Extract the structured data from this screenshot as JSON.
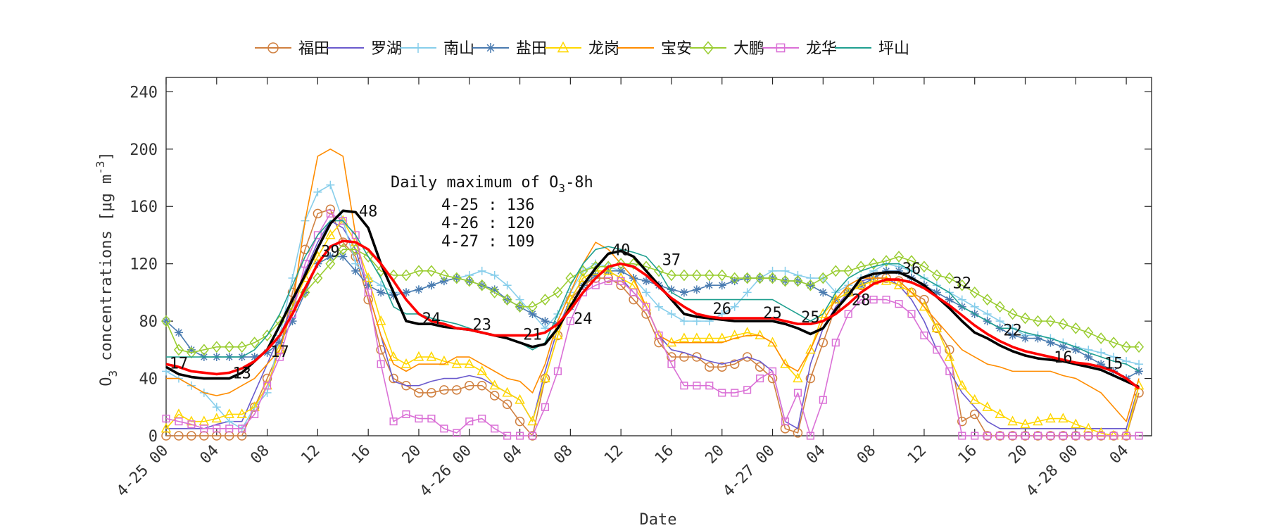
{
  "chart_data": {
    "type": "line",
    "xlabel": "Date",
    "ylabel": "O3 concentrations [μg m-3]",
    "ylim": [
      0,
      250
    ],
    "y_ticks": [
      0,
      40,
      80,
      120,
      160,
      200,
      240
    ],
    "xlim": [
      0,
      78
    ],
    "x_ticks": [
      0,
      4,
      8,
      12,
      16,
      20,
      24,
      28,
      32,
      36,
      40,
      44,
      48,
      52,
      56,
      60,
      64,
      68,
      72,
      76
    ],
    "x_tick_labels": [
      "4-25 00",
      "04",
      "08",
      "12",
      "16",
      "20",
      "4-26 00",
      "04",
      "08",
      "12",
      "16",
      "20",
      "4-27 00",
      "04",
      "08",
      "12",
      "16",
      "20",
      "4-28 00",
      "04"
    ],
    "grid": false,
    "legend": {
      "placement": "top",
      "entries": [
        "福田",
        "罗湖",
        "南山",
        "盐田",
        "龙岗",
        "宝安",
        "大鹏",
        "龙华",
        "坪山"
      ]
    },
    "annotation": {
      "title_main": "Daily maximum of O",
      "title_sub": "3",
      "title_tail": "-8h",
      "lines": [
        "4-25 : 136",
        "4-26 : 120",
        "4-27 : 109"
      ]
    },
    "series_x_step": 1,
    "series": [
      {
        "name": "福田",
        "color": "#D08040",
        "marker": "circle",
        "values": [
          0,
          0,
          0,
          0,
          0,
          0,
          0,
          20,
          40,
          60,
          100,
          130,
          155,
          158,
          135,
          125,
          95,
          60,
          40,
          35,
          30,
          30,
          32,
          32,
          35,
          35,
          28,
          22,
          10,
          0,
          40,
          70,
          95,
          105,
          110,
          110,
          105,
          95,
          85,
          65,
          55,
          55,
          55,
          48,
          48,
          50,
          55,
          48,
          40,
          5,
          2,
          40,
          65,
          90,
          100,
          105,
          110,
          110,
          108,
          100,
          95,
          75,
          60,
          10,
          15,
          0,
          0,
          0,
          0,
          0,
          0,
          0,
          0,
          0,
          0,
          0,
          0,
          30
        ]
      },
      {
        "name": "罗湖",
        "color": "#6A5ACD",
        "marker": "none",
        "values": [
          5,
          5,
          5,
          5,
          8,
          10,
          10,
          30,
          50,
          70,
          90,
          115,
          135,
          150,
          145,
          130,
          100,
          70,
          38,
          35,
          35,
          38,
          40,
          40,
          42,
          40,
          35,
          30,
          25,
          10,
          45,
          75,
          95,
          110,
          115,
          115,
          110,
          100,
          90,
          70,
          60,
          58,
          55,
          52,
          50,
          52,
          55,
          52,
          45,
          10,
          5,
          50,
          75,
          90,
          100,
          108,
          110,
          110,
          105,
          95,
          80,
          60,
          45,
          30,
          20,
          10,
          5,
          5,
          5,
          5,
          5,
          5,
          5,
          5,
          5,
          5,
          5,
          35
        ]
      },
      {
        "name": "南山",
        "color": "#87CEEB",
        "marker": "plus",
        "values": [
          45,
          40,
          35,
          30,
          20,
          10,
          5,
          20,
          30,
          70,
          110,
          150,
          170,
          175,
          150,
          120,
          110,
          105,
          100,
          100,
          102,
          105,
          108,
          110,
          112,
          115,
          112,
          105,
          95,
          85,
          75,
          85,
          100,
          115,
          120,
          118,
          115,
          110,
          100,
          90,
          85,
          80,
          80,
          80,
          85,
          90,
          100,
          110,
          115,
          115,
          112,
          110,
          110,
          100,
          105,
          110,
          115,
          120,
          118,
          115,
          110,
          105,
          100,
          95,
          90,
          85,
          80,
          75,
          70,
          70,
          68,
          65,
          62,
          60,
          58,
          55,
          52,
          50
        ]
      },
      {
        "name": "盐田",
        "color": "#4A7BB0",
        "marker": "star",
        "values": [
          80,
          72,
          60,
          55,
          55,
          55,
          55,
          55,
          58,
          65,
          80,
          100,
          120,
          125,
          125,
          115,
          105,
          100,
          98,
          100,
          102,
          105,
          108,
          110,
          108,
          105,
          102,
          95,
          90,
          85,
          80,
          78,
          90,
          105,
          112,
          115,
          115,
          110,
          108,
          105,
          102,
          100,
          102,
          105,
          105,
          108,
          110,
          110,
          110,
          108,
          108,
          105,
          100,
          95,
          100,
          105,
          110,
          115,
          115,
          110,
          105,
          100,
          95,
          90,
          85,
          80,
          75,
          70,
          68,
          68,
          65,
          62,
          60,
          55,
          50,
          45,
          40,
          45
        ]
      },
      {
        "name": "龙岗",
        "color": "#FFD700",
        "marker": "triangle",
        "values": [
          5,
          15,
          10,
          10,
          12,
          15,
          15,
          20,
          35,
          60,
          90,
          110,
          125,
          140,
          150,
          135,
          110,
          80,
          55,
          50,
          55,
          55,
          52,
          50,
          50,
          45,
          35,
          30,
          25,
          10,
          40,
          70,
          95,
          110,
          115,
          115,
          110,
          105,
          90,
          70,
          65,
          68,
          68,
          68,
          68,
          70,
          72,
          70,
          65,
          50,
          40,
          60,
          85,
          95,
          100,
          105,
          108,
          108,
          105,
          100,
          90,
          75,
          55,
          35,
          25,
          20,
          15,
          10,
          8,
          10,
          12,
          12,
          8,
          5,
          2,
          0,
          0,
          35
        ]
      },
      {
        "name": "宝安",
        "color": "#FF8C00",
        "marker": "none",
        "values": [
          40,
          40,
          35,
          30,
          28,
          30,
          35,
          40,
          50,
          60,
          90,
          150,
          195,
          200,
          195,
          140,
          100,
          70,
          50,
          45,
          50,
          50,
          50,
          55,
          55,
          50,
          45,
          40,
          38,
          30,
          50,
          80,
          100,
          120,
          135,
          130,
          120,
          110,
          90,
          70,
          65,
          65,
          65,
          65,
          65,
          68,
          70,
          70,
          65,
          50,
          45,
          60,
          80,
          95,
          105,
          110,
          110,
          110,
          108,
          100,
          90,
          80,
          70,
          60,
          55,
          50,
          48,
          45,
          45,
          45,
          45,
          42,
          40,
          35,
          30,
          20,
          10,
          40
        ]
      },
      {
        "name": "大鹏",
        "color": "#9ACD32",
        "marker": "diamond",
        "values": [
          80,
          60,
          58,
          60,
          62,
          62,
          62,
          65,
          70,
          80,
          90,
          100,
          110,
          120,
          130,
          130,
          125,
          115,
          112,
          112,
          115,
          115,
          112,
          110,
          108,
          105,
          100,
          95,
          90,
          90,
          95,
          100,
          110,
          115,
          118,
          118,
          120,
          120,
          118,
          115,
          112,
          112,
          112,
          112,
          112,
          110,
          110,
          110,
          110,
          108,
          108,
          105,
          110,
          115,
          115,
          118,
          120,
          122,
          125,
          122,
          118,
          112,
          110,
          105,
          100,
          95,
          90,
          85,
          82,
          80,
          80,
          78,
          75,
          72,
          68,
          65,
          62,
          62
        ]
      },
      {
        "name": "龙华",
        "color": "#DA70D6",
        "marker": "square",
        "values": [
          12,
          10,
          8,
          5,
          5,
          5,
          5,
          15,
          35,
          55,
          85,
          120,
          140,
          155,
          150,
          140,
          100,
          50,
          10,
          15,
          12,
          12,
          5,
          2,
          10,
          12,
          5,
          0,
          0,
          0,
          20,
          45,
          80,
          100,
          105,
          108,
          108,
          100,
          90,
          70,
          50,
          35,
          35,
          35,
          30,
          30,
          32,
          40,
          45,
          10,
          30,
          0,
          25,
          65,
          85,
          95,
          95,
          95,
          92,
          85,
          70,
          60,
          45,
          0,
          0,
          0,
          0,
          0,
          0,
          0,
          0,
          0,
          0,
          0,
          0,
          0,
          0,
          0
        ]
      },
      {
        "name": "坪山",
        "color": "#20A090",
        "marker": "none",
        "values": [
          55,
          55,
          55,
          55,
          55,
          55,
          55,
          60,
          70,
          85,
          105,
          125,
          140,
          150,
          150,
          140,
          125,
          110,
          90,
          85,
          85,
          82,
          80,
          78,
          75,
          72,
          70,
          68,
          65,
          60,
          65,
          85,
          105,
          120,
          130,
          132,
          130,
          128,
          125,
          115,
          100,
          95,
          95,
          95,
          95,
          95,
          95,
          95,
          95,
          90,
          85,
          80,
          85,
          100,
          110,
          115,
          118,
          120,
          120,
          115,
          110,
          105,
          100,
          90,
          85,
          80,
          75,
          75,
          72,
          70,
          68,
          65,
          62,
          58,
          55,
          52,
          50,
          45
        ]
      },
      {
        "name": "",
        "color": "#000000",
        "marker": "none",
        "width": 3.6,
        "values": [
          48,
          43,
          41,
          40,
          40,
          40,
          44,
          52,
          60,
          77,
          95,
          112,
          131,
          148,
          157,
          156,
          145,
          120,
          100,
          80,
          78,
          78,
          76,
          75,
          74,
          72,
          70,
          68,
          65,
          62,
          64,
          75,
          90,
          105,
          117,
          127,
          129,
          125,
          115,
          105,
          95,
          85,
          83,
          82,
          81,
          80,
          80,
          80,
          80,
          78,
          75,
          71,
          75,
          88,
          98,
          110,
          113,
          114,
          114,
          110,
          105,
          97,
          89,
          80,
          72,
          68,
          63,
          59,
          56,
          54,
          53,
          52,
          50,
          48,
          46,
          42,
          38,
          34
        ]
      },
      {
        "name": "",
        "color": "#FF0000",
        "marker": "none",
        "width": 3.6,
        "values": [
          50,
          48,
          45,
          44,
          43,
          44,
          47,
          52,
          60,
          70,
          85,
          103,
          120,
          132,
          136,
          135,
          130,
          120,
          108,
          95,
          85,
          80,
          78,
          75,
          74,
          72,
          70,
          70,
          70,
          70,
          72,
          78,
          88,
          100,
          110,
          118,
          120,
          118,
          112,
          104,
          96,
          90,
          85,
          83,
          82,
          82,
          82,
          82,
          82,
          80,
          78,
          78,
          80,
          85,
          92,
          100,
          106,
          109,
          109,
          107,
          103,
          97,
          91,
          84,
          77,
          71,
          66,
          62,
          59,
          57,
          55,
          53,
          51,
          50,
          48,
          45,
          40,
          33
        ]
      }
    ],
    "point_labels": [
      {
        "x": 1,
        "y": 47,
        "text": "17"
      },
      {
        "x": 6,
        "y": 40,
        "text": "13"
      },
      {
        "x": 9,
        "y": 55,
        "text": "17"
      },
      {
        "x": 13,
        "y": 125,
        "text": "39"
      },
      {
        "x": 16,
        "y": 153,
        "text": "48"
      },
      {
        "x": 21,
        "y": 78,
        "text": "24"
      },
      {
        "x": 25,
        "y": 74,
        "text": "23"
      },
      {
        "x": 29,
        "y": 67,
        "text": "21"
      },
      {
        "x": 33,
        "y": 78,
        "text": "24"
      },
      {
        "x": 36,
        "y": 126,
        "text": "40"
      },
      {
        "x": 40,
        "y": 119,
        "text": "37"
      },
      {
        "x": 44,
        "y": 85,
        "text": "26"
      },
      {
        "x": 48,
        "y": 82,
        "text": "25"
      },
      {
        "x": 51,
        "y": 79,
        "text": "25"
      },
      {
        "x": 55,
        "y": 91,
        "text": "28"
      },
      {
        "x": 59,
        "y": 113,
        "text": "36"
      },
      {
        "x": 63,
        "y": 103,
        "text": "32"
      },
      {
        "x": 67,
        "y": 70,
        "text": "22"
      },
      {
        "x": 71,
        "y": 51,
        "text": "16"
      },
      {
        "x": 75,
        "y": 47,
        "text": "15"
      }
    ]
  }
}
